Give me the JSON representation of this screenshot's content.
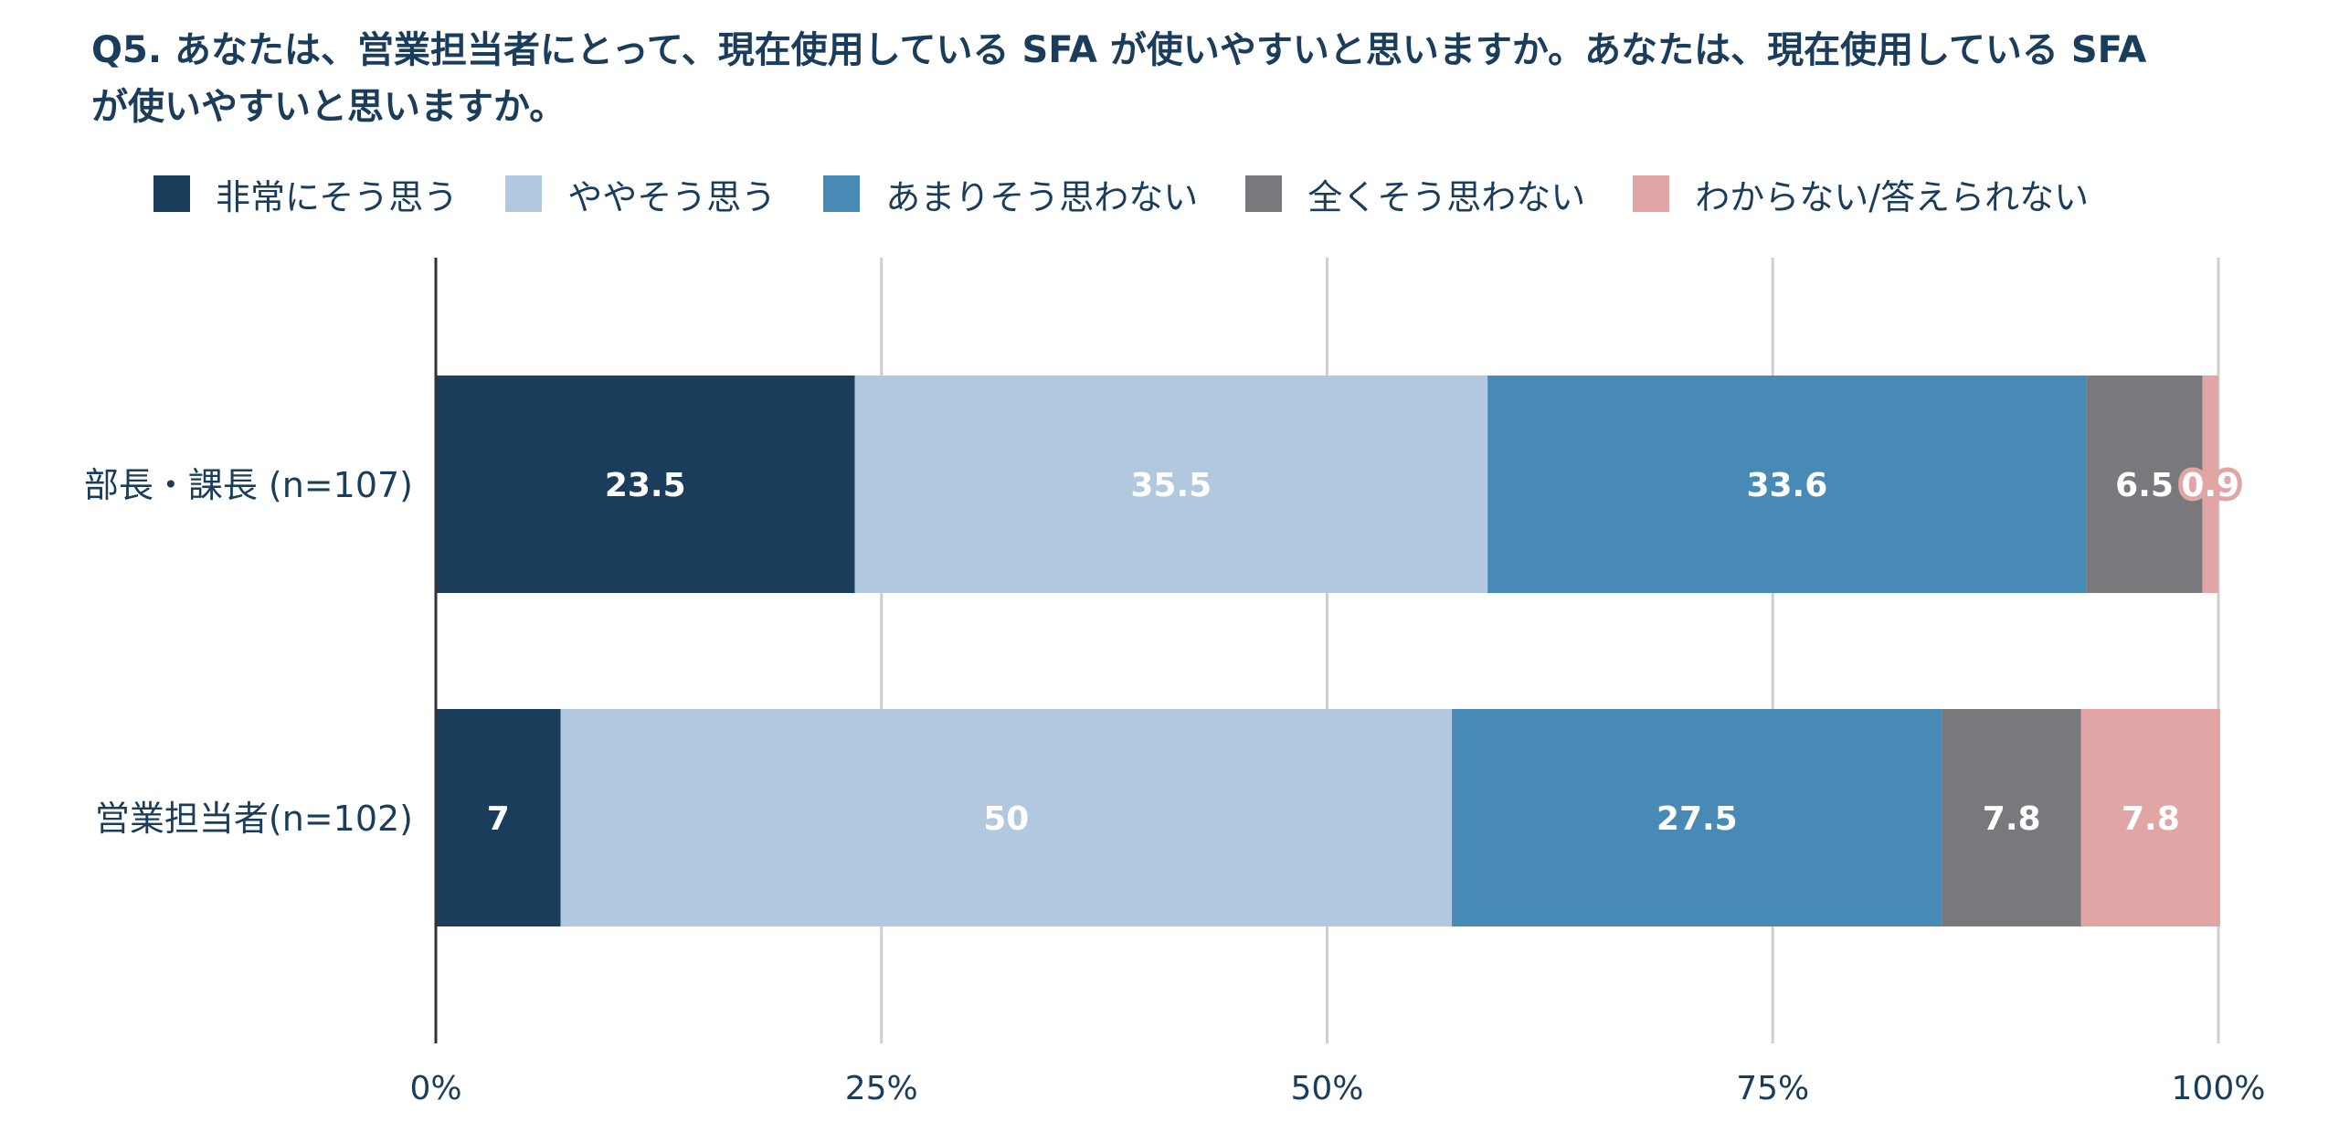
{
  "chart_data": {
    "type": "bar",
    "orientation": "horizontal",
    "stacked": true,
    "title": "Q5. あなたは、営業担当者にとって、現在使用している SFA が使いやすいと思いますか。あなたは、現在使用している SFA が使いやすいと思いますか。",
    "categories": [
      "部長・課長 (n=107)",
      "営業担当者(n=102)"
    ],
    "series": [
      {
        "name": "非常にそう思う",
        "color": "#1b3d5c",
        "label_color": "#ffffff",
        "values": [
          23.5,
          7
        ]
      },
      {
        "name": "ややそう思う",
        "color": "#b1c8df",
        "label_color": "#ffffff",
        "values": [
          35.5,
          50
        ]
      },
      {
        "name": "あまりそう思わない",
        "color": "#468ab5",
        "label_color": "#ffffff",
        "values": [
          33.6,
          27.5
        ]
      },
      {
        "name": "全くそう思わない",
        "color": "#79787d",
        "label_color": "#ffffff",
        "values": [
          6.5,
          7.8
        ]
      },
      {
        "name": "わからない/答えられない",
        "color": "#e1a5a5",
        "label_color": "#ffffff",
        "values": [
          0.9,
          7.8
        ]
      }
    ],
    "value_labels": [
      [
        "23.5",
        "35.5",
        "33.6",
        "6.5",
        "0.9"
      ],
      [
        "7",
        "50",
        "27.5",
        "7.8",
        "7.8"
      ]
    ],
    "xlim": [
      0,
      100
    ],
    "x_ticks": [
      0,
      25,
      50,
      75,
      100
    ],
    "x_tick_labels": [
      "0%",
      "25%",
      "50%",
      "75%",
      "100%"
    ],
    "xlabel": "",
    "ylabel": "",
    "grid": true,
    "legend_position": "top"
  }
}
